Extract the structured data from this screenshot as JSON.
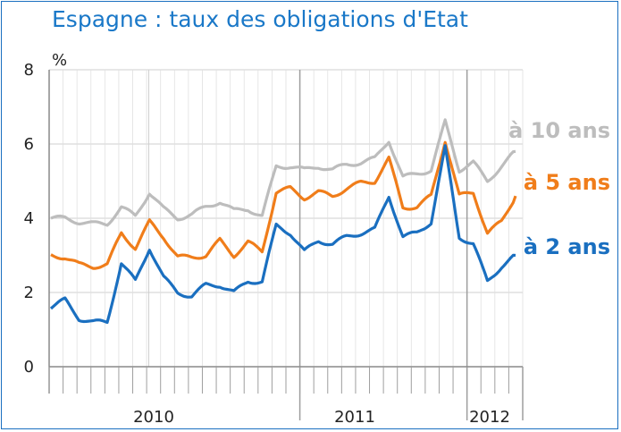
{
  "chart_data": {
    "type": "line",
    "title": "Espagne : taux des obligations d'Etat",
    "ylabel": "%",
    "ylim": [
      0,
      8
    ],
    "y_ticks": [
      "0",
      "2",
      "4",
      "6",
      "8"
    ],
    "x_ticks": [
      "2010",
      "2011",
      "2012"
    ],
    "x_range": [
      "2009-07",
      "2012-04"
    ],
    "grid": true,
    "x": [
      "2009-07",
      "2009-08",
      "2009-09",
      "2009-10",
      "2009-11",
      "2009-12",
      "2010-01",
      "2010-02",
      "2010-03",
      "2010-04",
      "2010-05",
      "2010-06",
      "2010-07",
      "2010-08",
      "2010-09",
      "2010-10",
      "2010-11",
      "2010-12",
      "2011-01",
      "2011-02",
      "2011-03",
      "2011-04",
      "2011-05",
      "2011-06",
      "2011-07",
      "2011-08",
      "2011-09",
      "2011-10",
      "2011-11",
      "2011-12",
      "2012-01",
      "2012-02",
      "2012-03",
      "2012-04"
    ],
    "series": [
      {
        "name": "à 10 ans",
        "color": "#bdbdbd",
        "values": [
          4.0,
          4.0,
          3.9,
          3.85,
          3.85,
          4.3,
          4.05,
          4.7,
          4.25,
          4.0,
          4.1,
          4.3,
          4.45,
          4.2,
          4.25,
          4.05,
          5.4,
          5.4,
          5.3,
          5.4,
          5.3,
          5.45,
          5.5,
          5.6,
          6.1,
          5.1,
          5.2,
          5.3,
          6.6,
          5.3,
          5.5,
          5.0,
          5.4,
          5.8
        ]
      },
      {
        "name": "à 5 ans",
        "color": "#f07d1a",
        "values": [
          3.0,
          2.95,
          2.75,
          2.7,
          2.75,
          3.6,
          3.2,
          3.9,
          3.5,
          2.95,
          2.95,
          3.0,
          3.4,
          3.0,
          3.35,
          3.1,
          4.7,
          4.8,
          4.55,
          4.7,
          4.6,
          4.8,
          4.95,
          5.0,
          5.6,
          4.3,
          4.3,
          4.6,
          6.1,
          4.6,
          4.7,
          3.6,
          3.9,
          4.6
        ]
      },
      {
        "name": "à 2 ans",
        "color": "#1a6fc0",
        "values": [
          1.6,
          1.8,
          1.3,
          1.2,
          1.2,
          2.8,
          2.3,
          3.2,
          2.4,
          2.0,
          1.9,
          2.2,
          2.2,
          2.0,
          2.3,
          2.3,
          3.8,
          3.6,
          3.1,
          3.4,
          3.3,
          3.5,
          3.6,
          3.7,
          4.6,
          3.5,
          3.6,
          3.9,
          5.9,
          3.5,
          3.3,
          2.3,
          2.7,
          3.0
        ]
      }
    ],
    "legend": "inline-right"
  }
}
